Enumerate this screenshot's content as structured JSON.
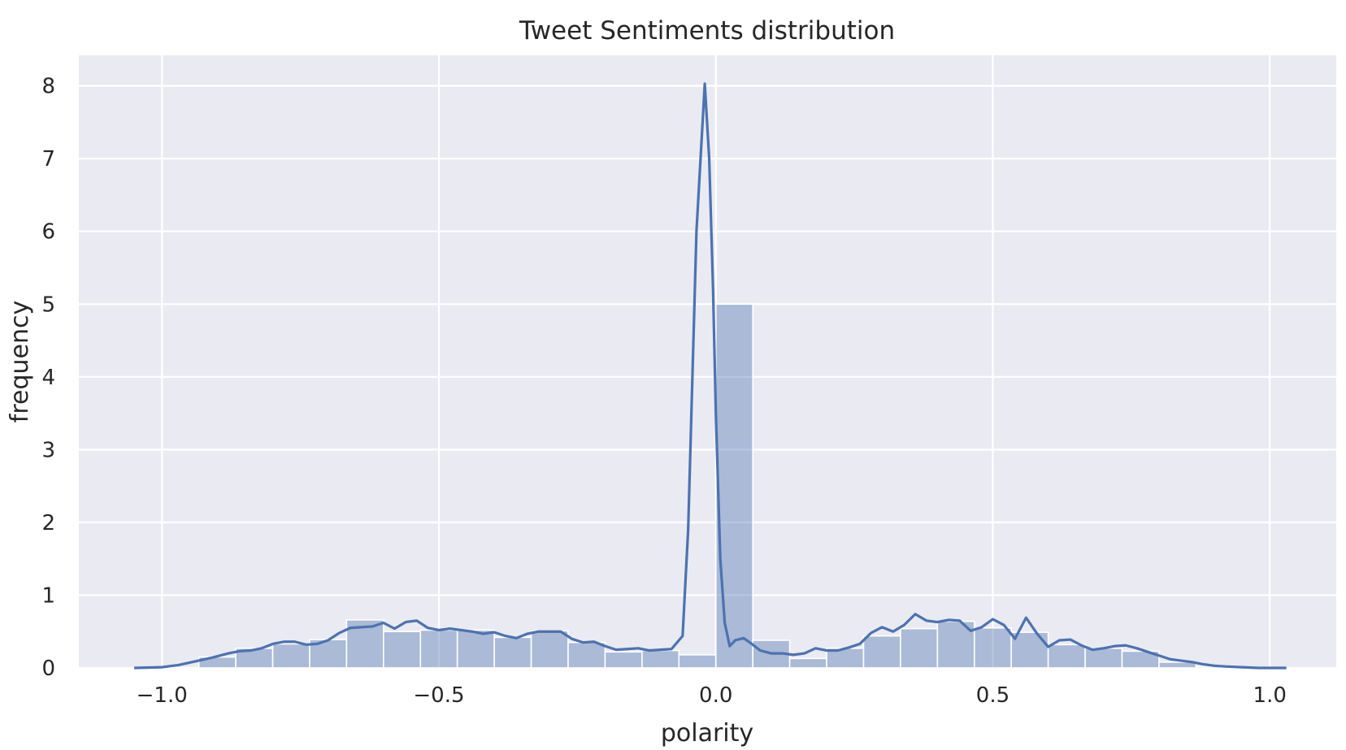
{
  "chart_data": {
    "type": "bar",
    "title": "Tweet Sentiments distribution",
    "xlabel": "polarity",
    "ylabel": "frequency",
    "xlim": [
      -1.15,
      1.12
    ],
    "ylim": [
      0,
      8.42
    ],
    "grid": true,
    "legend": "none",
    "x_ticks": [
      {
        "value": -1.0,
        "label": "−1.0"
      },
      {
        "value": -0.5,
        "label": "−0.5"
      },
      {
        "value": 0.0,
        "label": "0.0"
      },
      {
        "value": 0.5,
        "label": "0.5"
      },
      {
        "value": 1.0,
        "label": "1.0"
      }
    ],
    "y_ticks": [
      {
        "value": 0,
        "label": "0"
      },
      {
        "value": 1,
        "label": "1"
      },
      {
        "value": 2,
        "label": "2"
      },
      {
        "value": 3,
        "label": "3"
      },
      {
        "value": 4,
        "label": "4"
      },
      {
        "value": 5,
        "label": "5"
      },
      {
        "value": 6,
        "label": "6"
      },
      {
        "value": 7,
        "label": "7"
      },
      {
        "value": 8,
        "label": "8"
      }
    ],
    "histogram": {
      "bin_edges": [
        -0.9333,
        -0.8667,
        -0.8,
        -0.7333,
        -0.6667,
        -0.6,
        -0.5333,
        -0.4667,
        -0.4,
        -0.3333,
        -0.2667,
        -0.2,
        -0.1333,
        -0.0667,
        0.0,
        0.0667,
        0.1333,
        0.2,
        0.2667,
        0.3333,
        0.4,
        0.4667,
        0.5333,
        0.6,
        0.6667,
        0.7333,
        0.8,
        0.8667,
        0.9333
      ],
      "values": [
        0.15,
        0.27,
        0.33,
        0.39,
        0.66,
        0.5,
        0.52,
        0.52,
        0.42,
        0.51,
        0.35,
        0.22,
        0.24,
        0.18,
        5.0,
        0.38,
        0.13,
        0.27,
        0.44,
        0.54,
        0.64,
        0.55,
        0.49,
        0.32,
        0.27,
        0.23,
        0.08,
        0.02
      ],
      "color": "#4c72b0"
    },
    "kde": {
      "color": "#4c72b0",
      "x": [
        -1.05,
        -1.0,
        -0.97,
        -0.94,
        -0.91,
        -0.88,
        -0.86,
        -0.84,
        -0.82,
        -0.8,
        -0.78,
        -0.76,
        -0.74,
        -0.72,
        -0.7,
        -0.68,
        -0.66,
        -0.64,
        -0.62,
        -0.6,
        -0.58,
        -0.56,
        -0.54,
        -0.52,
        -0.5,
        -0.48,
        -0.46,
        -0.44,
        -0.42,
        -0.4,
        -0.38,
        -0.36,
        -0.34,
        -0.32,
        -0.3,
        -0.28,
        -0.26,
        -0.24,
        -0.22,
        -0.2,
        -0.18,
        -0.16,
        -0.14,
        -0.12,
        -0.1,
        -0.08,
        -0.06,
        -0.05,
        -0.035,
        -0.02,
        -0.012,
        -0.005,
        0.0,
        0.008,
        0.016,
        0.025,
        0.035,
        0.05,
        0.065,
        0.08,
        0.1,
        0.12,
        0.14,
        0.16,
        0.18,
        0.2,
        0.22,
        0.24,
        0.26,
        0.28,
        0.3,
        0.32,
        0.34,
        0.36,
        0.38,
        0.4,
        0.42,
        0.44,
        0.46,
        0.48,
        0.5,
        0.52,
        0.54,
        0.56,
        0.58,
        0.6,
        0.62,
        0.64,
        0.66,
        0.68,
        0.7,
        0.72,
        0.74,
        0.76,
        0.78,
        0.8,
        0.82,
        0.84,
        0.86,
        0.88,
        0.9,
        0.92,
        0.95,
        0.98,
        1.03
      ],
      "y": [
        0.0,
        0.01,
        0.04,
        0.09,
        0.14,
        0.2,
        0.23,
        0.24,
        0.27,
        0.33,
        0.36,
        0.36,
        0.32,
        0.33,
        0.38,
        0.48,
        0.55,
        0.56,
        0.57,
        0.62,
        0.54,
        0.63,
        0.65,
        0.55,
        0.52,
        0.54,
        0.52,
        0.5,
        0.47,
        0.49,
        0.44,
        0.41,
        0.47,
        0.5,
        0.5,
        0.5,
        0.4,
        0.35,
        0.36,
        0.3,
        0.25,
        0.26,
        0.27,
        0.24,
        0.25,
        0.26,
        0.44,
        1.9,
        6.0,
        8.03,
        7.0,
        5.2,
        3.5,
        1.5,
        0.62,
        0.3,
        0.38,
        0.41,
        0.33,
        0.24,
        0.2,
        0.2,
        0.18,
        0.2,
        0.27,
        0.24,
        0.24,
        0.28,
        0.33,
        0.48,
        0.56,
        0.5,
        0.59,
        0.74,
        0.65,
        0.63,
        0.66,
        0.65,
        0.51,
        0.56,
        0.67,
        0.59,
        0.4,
        0.69,
        0.47,
        0.29,
        0.38,
        0.39,
        0.31,
        0.25,
        0.27,
        0.3,
        0.31,
        0.27,
        0.22,
        0.17,
        0.12,
        0.1,
        0.08,
        0.05,
        0.03,
        0.02,
        0.01,
        0.0,
        0.0
      ]
    }
  }
}
